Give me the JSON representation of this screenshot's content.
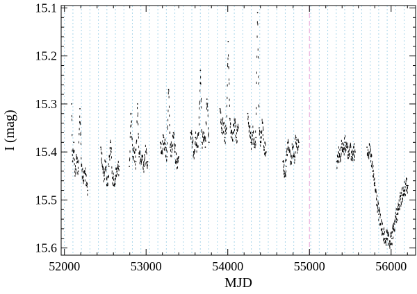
{
  "chart_data": {
    "type": "scatter",
    "title": "",
    "xlabel": "MJD",
    "ylabel": "I (mag)",
    "xlim": [
      51960,
      56300
    ],
    "ylim": [
      15.615,
      15.095
    ],
    "y_inverted": true,
    "xticks": [
      52000,
      53000,
      54000,
      55000,
      56000
    ],
    "xtick_labels": [
      "52000",
      "53000",
      "54000",
      "55000",
      "56000"
    ],
    "yticks": [
      15.1,
      15.2,
      15.3,
      15.4,
      15.5,
      15.6
    ],
    "ytick_labels": [
      "15.1",
      "15.2",
      "15.3",
      "15.4",
      "15.5",
      "15.6"
    ],
    "grid": false,
    "marker_color": "#000000",
    "guide_line_color": "#a9d6ea",
    "special_line_color": "#e7a4d7",
    "vertical_guide_mjd": [
      52000,
      52104,
      52208,
      52312,
      52416,
      52520,
      52624,
      52728,
      52832,
      52936,
      53040,
      53144,
      53248,
      53352,
      53456,
      53560,
      53664,
      53768,
      53872,
      53976,
      54080,
      54184,
      54288,
      54392,
      54496,
      54600,
      54704,
      54808,
      54912,
      55016,
      55120,
      55224,
      55328,
      55432,
      55536,
      55640,
      55744,
      55848,
      55952,
      56056,
      56160
    ],
    "special_line_mjd": 55000,
    "seasons": [
      {
        "mjd_start": 52080,
        "mjd_end": 52290,
        "points": [
          [
            52088,
            15.3
          ],
          [
            52100,
            15.42
          ],
          [
            52115,
            15.38
          ],
          [
            52130,
            15.45
          ],
          [
            52150,
            15.41
          ],
          [
            52170,
            15.44
          ],
          [
            52190,
            15.31
          ],
          [
            52210,
            15.43
          ],
          [
            52230,
            15.46
          ],
          [
            52250,
            15.44
          ],
          [
            52270,
            15.47
          ],
          [
            52285,
            15.48
          ]
        ]
      },
      {
        "mjd_start": 52440,
        "mjd_end": 52680,
        "points": [
          [
            52445,
            15.39
          ],
          [
            52465,
            15.43
          ],
          [
            52485,
            15.45
          ],
          [
            52505,
            15.42
          ],
          [
            52525,
            15.47
          ],
          [
            52545,
            15.43
          ],
          [
            52565,
            15.38
          ],
          [
            52585,
            15.44
          ],
          [
            52605,
            15.47
          ],
          [
            52625,
            15.45
          ],
          [
            52645,
            15.44
          ],
          [
            52670,
            15.43
          ]
        ]
      },
      {
        "mjd_start": 52790,
        "mjd_end": 53030,
        "points": [
          [
            52795,
            15.43
          ],
          [
            52815,
            15.32
          ],
          [
            52835,
            15.41
          ],
          [
            52855,
            15.4
          ],
          [
            52875,
            15.42
          ],
          [
            52895,
            15.3
          ],
          [
            52915,
            15.41
          ],
          [
            52935,
            15.42
          ],
          [
            52955,
            15.41
          ],
          [
            52975,
            15.43
          ],
          [
            52995,
            15.4
          ],
          [
            53020,
            15.42
          ]
        ]
      },
      {
        "mjd_start": 53170,
        "mjd_end": 53410,
        "points": [
          [
            53175,
            15.38
          ],
          [
            53195,
            15.4
          ],
          [
            53215,
            15.37
          ],
          [
            53235,
            15.39
          ],
          [
            53255,
            15.41
          ],
          [
            53275,
            15.27
          ],
          [
            53295,
            15.39
          ],
          [
            53315,
            15.4
          ],
          [
            53335,
            15.36
          ],
          [
            53355,
            15.4
          ],
          [
            53375,
            15.42
          ],
          [
            53400,
            15.41
          ]
        ]
      },
      {
        "mjd_start": 53540,
        "mjd_end": 53780,
        "points": [
          [
            53545,
            15.36
          ],
          [
            53565,
            15.38
          ],
          [
            53585,
            15.4
          ],
          [
            53605,
            15.37
          ],
          [
            53625,
            15.39
          ],
          [
            53645,
            15.36
          ],
          [
            53665,
            15.23
          ],
          [
            53685,
            15.38
          ],
          [
            53705,
            15.37
          ],
          [
            53725,
            15.39
          ],
          [
            53745,
            15.29
          ],
          [
            53770,
            15.38
          ]
        ]
      },
      {
        "mjd_start": 53900,
        "mjd_end": 54140,
        "points": [
          [
            53905,
            15.31
          ],
          [
            53925,
            15.36
          ],
          [
            53945,
            15.34
          ],
          [
            53965,
            15.37
          ],
          [
            53985,
            15.35
          ],
          [
            54005,
            15.17
          ],
          [
            54025,
            15.33
          ],
          [
            54045,
            15.36
          ],
          [
            54065,
            15.36
          ],
          [
            54085,
            15.34
          ],
          [
            54105,
            15.37
          ],
          [
            54130,
            15.35
          ]
        ]
      },
      {
        "mjd_start": 54240,
        "mjd_end": 54480,
        "points": [
          [
            54245,
            15.32
          ],
          [
            54265,
            15.35
          ],
          [
            54285,
            15.38
          ],
          [
            54305,
            15.36
          ],
          [
            54325,
            15.39
          ],
          [
            54345,
            15.37
          ],
          [
            54365,
            15.11
          ],
          [
            54385,
            15.35
          ],
          [
            54405,
            15.38
          ],
          [
            54425,
            15.34
          ],
          [
            54445,
            15.39
          ],
          [
            54470,
            15.4
          ]
        ]
      },
      {
        "mjd_start": 54670,
        "mjd_end": 54880,
        "points": [
          [
            54675,
            15.42
          ],
          [
            54695,
            15.44
          ],
          [
            54715,
            15.43
          ],
          [
            54735,
            15.38
          ],
          [
            54755,
            15.4
          ],
          [
            54775,
            15.42
          ],
          [
            54795,
            15.39
          ],
          [
            54815,
            15.41
          ],
          [
            54835,
            15.37
          ],
          [
            54855,
            15.39
          ],
          [
            54870,
            15.38
          ]
        ]
      },
      {
        "mjd_start": 55330,
        "mjd_end": 55570,
        "points": [
          [
            55335,
            15.42
          ],
          [
            55355,
            15.4
          ],
          [
            55375,
            15.41
          ],
          [
            55395,
            15.39
          ],
          [
            55415,
            15.4
          ],
          [
            55435,
            15.38
          ],
          [
            55455,
            15.39
          ],
          [
            55475,
            15.4
          ],
          [
            55495,
            15.39
          ],
          [
            55515,
            15.41
          ],
          [
            55535,
            15.4
          ],
          [
            55560,
            15.4
          ]
        ]
      },
      {
        "mjd_start": 55700,
        "mjd_end": 56210,
        "points": [
          [
            55705,
            15.39
          ],
          [
            55730,
            15.4
          ],
          [
            55755,
            15.41
          ],
          [
            55775,
            15.44
          ],
          [
            55800,
            15.47
          ],
          [
            55825,
            15.5
          ],
          [
            55850,
            15.53
          ],
          [
            55875,
            15.55
          ],
          [
            55900,
            15.57
          ],
          [
            55925,
            15.58
          ],
          [
            55950,
            15.58
          ],
          [
            55975,
            15.59
          ],
          [
            56010,
            15.58
          ],
          [
            56040,
            15.55
          ],
          [
            56070,
            15.53
          ],
          [
            56100,
            15.51
          ],
          [
            56130,
            15.49
          ],
          [
            56160,
            15.48
          ],
          [
            56190,
            15.47
          ],
          [
            56205,
            15.47
          ]
        ]
      }
    ]
  }
}
